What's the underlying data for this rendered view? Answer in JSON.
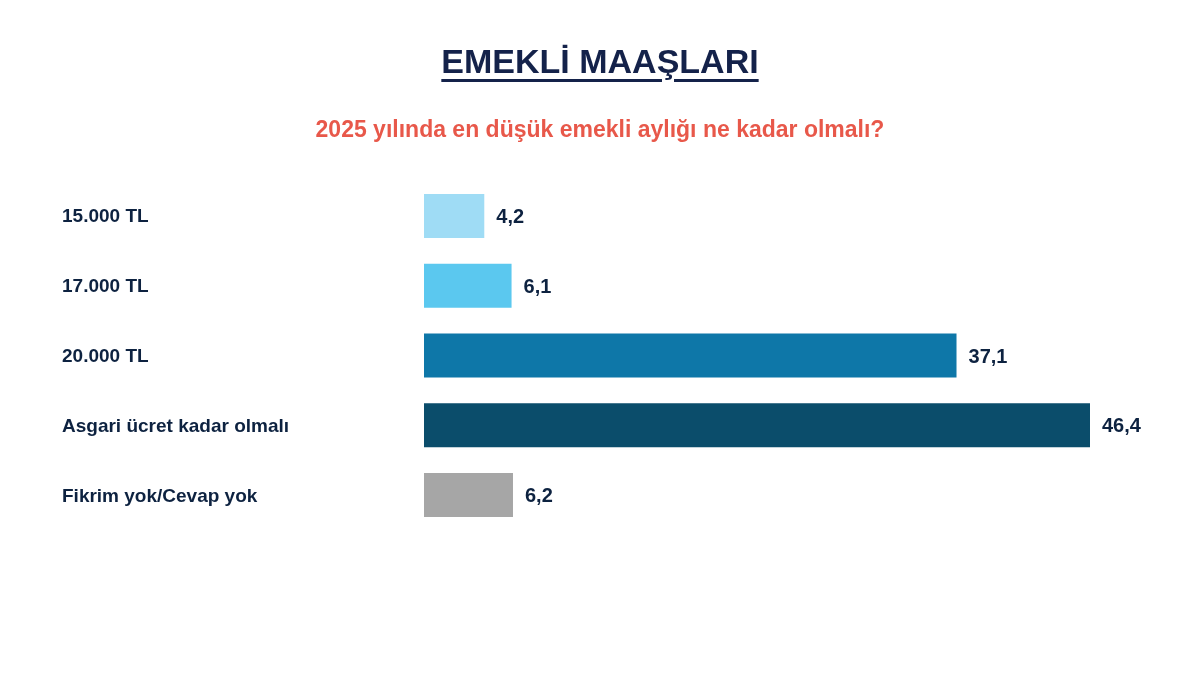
{
  "chart_data": {
    "type": "bar",
    "orientation": "horizontal",
    "title": "EMEKLİ MAAŞLARI",
    "subtitle": "2025 yılında en düşük emekli aylığı ne kadar olmalı?",
    "categories": [
      "15.000 TL",
      "17.000 TL",
      "20.000 TL",
      "Asgari ücret kadar olmalı",
      "Fikrim yok/Cevap yok"
    ],
    "values": [
      4.2,
      6.1,
      37.1,
      46.4,
      6.2
    ],
    "colors": [
      "#9fdcf5",
      "#5bc8ef",
      "#0e77a8",
      "#0b4d6b",
      "#a6a6a6"
    ],
    "value_labels": [
      "4,2",
      "6,1",
      "37,1",
      "46,4",
      "6,2"
    ]
  }
}
